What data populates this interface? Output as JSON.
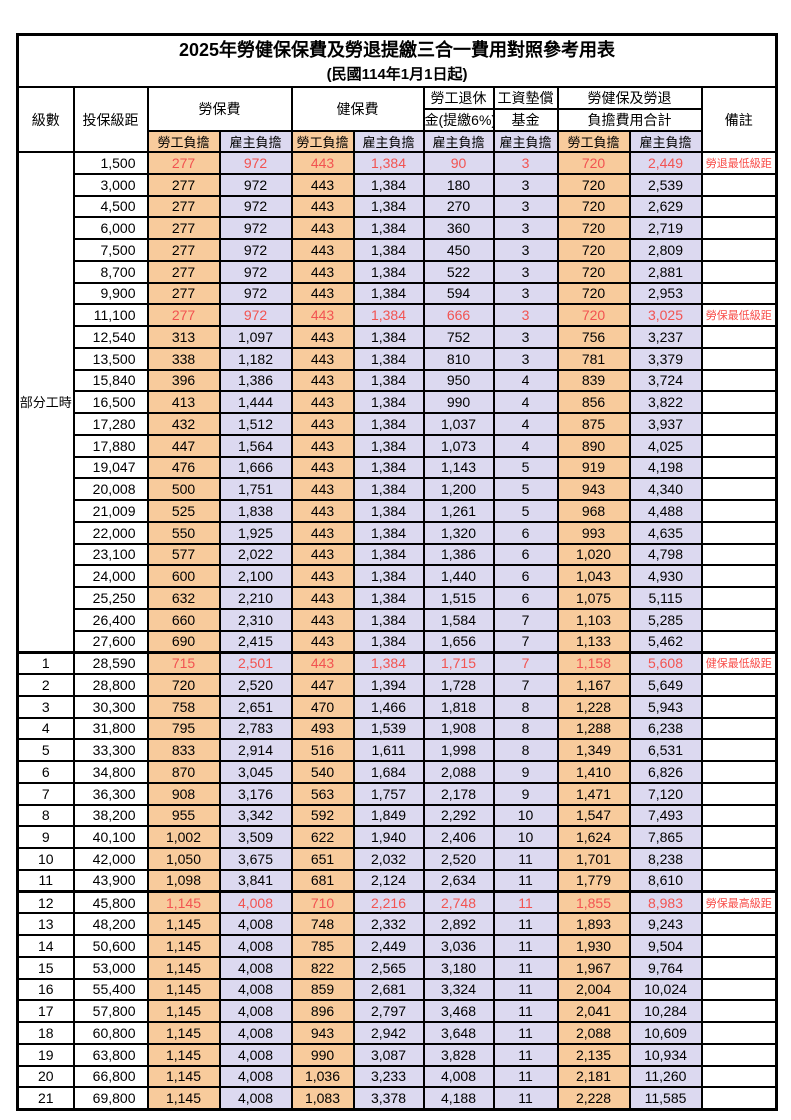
{
  "title": "2025年勞健保保費及勞退提繳三合一費用對照參考用表",
  "subtitle": "(民國114年1月1日起)",
  "colors": {
    "employee_col_bg": "#f8cb9c",
    "employer_col_bg": "#dcd9f0",
    "highlight_red": "#f25351",
    "remark_red": "#f84b47",
    "border": "#000000"
  },
  "header": {
    "level": "級數",
    "bracket": "投保級距",
    "labor_insurance": "勞保費",
    "health_insurance": "健保費",
    "pension_line1": "勞工退休",
    "pension_line2": "金(提繳6%)",
    "wage_fund_line1": "工資墊償",
    "wage_fund_line2": "基金",
    "total_line1": "勞健保及勞退",
    "total_line2": "負擔費用合計",
    "remark": "備註",
    "employee_share": "勞工負擔",
    "employer_share": "雇主負擔"
  },
  "part_time": {
    "label": "部分工時",
    "span": 23
  },
  "rows": [
    {
      "level": "",
      "bracket": "1,500",
      "li_emp": "277",
      "li_er": "972",
      "hi_emp": "443",
      "hi_er": "1,384",
      "pension": "90",
      "fund": "3",
      "tot_emp": "720",
      "tot_er": "2,449",
      "remark": "勞退最低級距",
      "hl": true,
      "thick_top": false
    },
    {
      "level": "",
      "bracket": "3,000",
      "li_emp": "277",
      "li_er": "972",
      "hi_emp": "443",
      "hi_er": "1,384",
      "pension": "180",
      "fund": "3",
      "tot_emp": "720",
      "tot_er": "2,539",
      "remark": "",
      "hl": false,
      "thick_top": false
    },
    {
      "level": "",
      "bracket": "4,500",
      "li_emp": "277",
      "li_er": "972",
      "hi_emp": "443",
      "hi_er": "1,384",
      "pension": "270",
      "fund": "3",
      "tot_emp": "720",
      "tot_er": "2,629",
      "remark": "",
      "hl": false,
      "thick_top": false
    },
    {
      "level": "",
      "bracket": "6,000",
      "li_emp": "277",
      "li_er": "972",
      "hi_emp": "443",
      "hi_er": "1,384",
      "pension": "360",
      "fund": "3",
      "tot_emp": "720",
      "tot_er": "2,719",
      "remark": "",
      "hl": false,
      "thick_top": false
    },
    {
      "level": "",
      "bracket": "7,500",
      "li_emp": "277",
      "li_er": "972",
      "hi_emp": "443",
      "hi_er": "1,384",
      "pension": "450",
      "fund": "3",
      "tot_emp": "720",
      "tot_er": "2,809",
      "remark": "",
      "hl": false,
      "thick_top": false
    },
    {
      "level": "",
      "bracket": "8,700",
      "li_emp": "277",
      "li_er": "972",
      "hi_emp": "443",
      "hi_er": "1,384",
      "pension": "522",
      "fund": "3",
      "tot_emp": "720",
      "tot_er": "2,881",
      "remark": "",
      "hl": false,
      "thick_top": false
    },
    {
      "level": "",
      "bracket": "9,900",
      "li_emp": "277",
      "li_er": "972",
      "hi_emp": "443",
      "hi_er": "1,384",
      "pension": "594",
      "fund": "3",
      "tot_emp": "720",
      "tot_er": "2,953",
      "remark": "",
      "hl": false,
      "thick_top": false
    },
    {
      "level": "",
      "bracket": "11,100",
      "li_emp": "277",
      "li_er": "972",
      "hi_emp": "443",
      "hi_er": "1,384",
      "pension": "666",
      "fund": "3",
      "tot_emp": "720",
      "tot_er": "3,025",
      "remark": "勞保最低級距",
      "hl": true,
      "thick_top": false
    },
    {
      "level": "",
      "bracket": "12,540",
      "li_emp": "313",
      "li_er": "1,097",
      "hi_emp": "443",
      "hi_er": "1,384",
      "pension": "752",
      "fund": "3",
      "tot_emp": "756",
      "tot_er": "3,237",
      "remark": "",
      "hl": false,
      "thick_top": false
    },
    {
      "level": "",
      "bracket": "13,500",
      "li_emp": "338",
      "li_er": "1,182",
      "hi_emp": "443",
      "hi_er": "1,384",
      "pension": "810",
      "fund": "3",
      "tot_emp": "781",
      "tot_er": "3,379",
      "remark": "",
      "hl": false,
      "thick_top": false
    },
    {
      "level": "",
      "bracket": "15,840",
      "li_emp": "396",
      "li_er": "1,386",
      "hi_emp": "443",
      "hi_er": "1,384",
      "pension": "950",
      "fund": "4",
      "tot_emp": "839",
      "tot_er": "3,724",
      "remark": "",
      "hl": false,
      "thick_top": false
    },
    {
      "level": "",
      "bracket": "16,500",
      "li_emp": "413",
      "li_er": "1,444",
      "hi_emp": "443",
      "hi_er": "1,384",
      "pension": "990",
      "fund": "4",
      "tot_emp": "856",
      "tot_er": "3,822",
      "remark": "",
      "hl": false,
      "thick_top": false
    },
    {
      "level": "",
      "bracket": "17,280",
      "li_emp": "432",
      "li_er": "1,512",
      "hi_emp": "443",
      "hi_er": "1,384",
      "pension": "1,037",
      "fund": "4",
      "tot_emp": "875",
      "tot_er": "3,937",
      "remark": "",
      "hl": false,
      "thick_top": false
    },
    {
      "level": "",
      "bracket": "17,880",
      "li_emp": "447",
      "li_er": "1,564",
      "hi_emp": "443",
      "hi_er": "1,384",
      "pension": "1,073",
      "fund": "4",
      "tot_emp": "890",
      "tot_er": "4,025",
      "remark": "",
      "hl": false,
      "thick_top": false
    },
    {
      "level": "",
      "bracket": "19,047",
      "li_emp": "476",
      "li_er": "1,666",
      "hi_emp": "443",
      "hi_er": "1,384",
      "pension": "1,143",
      "fund": "5",
      "tot_emp": "919",
      "tot_er": "4,198",
      "remark": "",
      "hl": false,
      "thick_top": false
    },
    {
      "level": "",
      "bracket": "20,008",
      "li_emp": "500",
      "li_er": "1,751",
      "hi_emp": "443",
      "hi_er": "1,384",
      "pension": "1,200",
      "fund": "5",
      "tot_emp": "943",
      "tot_er": "4,340",
      "remark": "",
      "hl": false,
      "thick_top": false
    },
    {
      "level": "",
      "bracket": "21,009",
      "li_emp": "525",
      "li_er": "1,838",
      "hi_emp": "443",
      "hi_er": "1,384",
      "pension": "1,261",
      "fund": "5",
      "tot_emp": "968",
      "tot_er": "4,488",
      "remark": "",
      "hl": false,
      "thick_top": false
    },
    {
      "level": "",
      "bracket": "22,000",
      "li_emp": "550",
      "li_er": "1,925",
      "hi_emp": "443",
      "hi_er": "1,384",
      "pension": "1,320",
      "fund": "6",
      "tot_emp": "993",
      "tot_er": "4,635",
      "remark": "",
      "hl": false,
      "thick_top": false
    },
    {
      "level": "",
      "bracket": "23,100",
      "li_emp": "577",
      "li_er": "2,022",
      "hi_emp": "443",
      "hi_er": "1,384",
      "pension": "1,386",
      "fund": "6",
      "tot_emp": "1,020",
      "tot_er": "4,798",
      "remark": "",
      "hl": false,
      "thick_top": false
    },
    {
      "level": "",
      "bracket": "24,000",
      "li_emp": "600",
      "li_er": "2,100",
      "hi_emp": "443",
      "hi_er": "1,384",
      "pension": "1,440",
      "fund": "6",
      "tot_emp": "1,043",
      "tot_er": "4,930",
      "remark": "",
      "hl": false,
      "thick_top": false
    },
    {
      "level": "",
      "bracket": "25,250",
      "li_emp": "632",
      "li_er": "2,210",
      "hi_emp": "443",
      "hi_er": "1,384",
      "pension": "1,515",
      "fund": "6",
      "tot_emp": "1,075",
      "tot_er": "5,115",
      "remark": "",
      "hl": false,
      "thick_top": false
    },
    {
      "level": "",
      "bracket": "26,400",
      "li_emp": "660",
      "li_er": "2,310",
      "hi_emp": "443",
      "hi_er": "1,384",
      "pension": "1,584",
      "fund": "7",
      "tot_emp": "1,103",
      "tot_er": "5,285",
      "remark": "",
      "hl": false,
      "thick_top": false
    },
    {
      "level": "",
      "bracket": "27,600",
      "li_emp": "690",
      "li_er": "2,415",
      "hi_emp": "443",
      "hi_er": "1,384",
      "pension": "1,656",
      "fund": "7",
      "tot_emp": "1,133",
      "tot_er": "5,462",
      "remark": "",
      "hl": false,
      "thick_top": false
    },
    {
      "level": "1",
      "bracket": "28,590",
      "li_emp": "715",
      "li_er": "2,501",
      "hi_emp": "443",
      "hi_er": "1,384",
      "pension": "1,715",
      "fund": "7",
      "tot_emp": "1,158",
      "tot_er": "5,608",
      "remark": "健保最低級距",
      "hl": true,
      "thick_top": true
    },
    {
      "level": "2",
      "bracket": "28,800",
      "li_emp": "720",
      "li_er": "2,520",
      "hi_emp": "447",
      "hi_er": "1,394",
      "pension": "1,728",
      "fund": "7",
      "tot_emp": "1,167",
      "tot_er": "5,649",
      "remark": "",
      "hl": false,
      "thick_top": false
    },
    {
      "level": "3",
      "bracket": "30,300",
      "li_emp": "758",
      "li_er": "2,651",
      "hi_emp": "470",
      "hi_er": "1,466",
      "pension": "1,818",
      "fund": "8",
      "tot_emp": "1,228",
      "tot_er": "5,943",
      "remark": "",
      "hl": false,
      "thick_top": false
    },
    {
      "level": "4",
      "bracket": "31,800",
      "li_emp": "795",
      "li_er": "2,783",
      "hi_emp": "493",
      "hi_er": "1,539",
      "pension": "1,908",
      "fund": "8",
      "tot_emp": "1,288",
      "tot_er": "6,238",
      "remark": "",
      "hl": false,
      "thick_top": false
    },
    {
      "level": "5",
      "bracket": "33,300",
      "li_emp": "833",
      "li_er": "2,914",
      "hi_emp": "516",
      "hi_er": "1,611",
      "pension": "1,998",
      "fund": "8",
      "tot_emp": "1,349",
      "tot_er": "6,531",
      "remark": "",
      "hl": false,
      "thick_top": false
    },
    {
      "level": "6",
      "bracket": "34,800",
      "li_emp": "870",
      "li_er": "3,045",
      "hi_emp": "540",
      "hi_er": "1,684",
      "pension": "2,088",
      "fund": "9",
      "tot_emp": "1,410",
      "tot_er": "6,826",
      "remark": "",
      "hl": false,
      "thick_top": false
    },
    {
      "level": "7",
      "bracket": "36,300",
      "li_emp": "908",
      "li_er": "3,176",
      "hi_emp": "563",
      "hi_er": "1,757",
      "pension": "2,178",
      "fund": "9",
      "tot_emp": "1,471",
      "tot_er": "7,120",
      "remark": "",
      "hl": false,
      "thick_top": false
    },
    {
      "level": "8",
      "bracket": "38,200",
      "li_emp": "955",
      "li_er": "3,342",
      "hi_emp": "592",
      "hi_er": "1,849",
      "pension": "2,292",
      "fund": "10",
      "tot_emp": "1,547",
      "tot_er": "7,493",
      "remark": "",
      "hl": false,
      "thick_top": false
    },
    {
      "level": "9",
      "bracket": "40,100",
      "li_emp": "1,002",
      "li_er": "3,509",
      "hi_emp": "622",
      "hi_er": "1,940",
      "pension": "2,406",
      "fund": "10",
      "tot_emp": "1,624",
      "tot_er": "7,865",
      "remark": "",
      "hl": false,
      "thick_top": false
    },
    {
      "level": "10",
      "bracket": "42,000",
      "li_emp": "1,050",
      "li_er": "3,675",
      "hi_emp": "651",
      "hi_er": "2,032",
      "pension": "2,520",
      "fund": "11",
      "tot_emp": "1,701",
      "tot_er": "8,238",
      "remark": "",
      "hl": false,
      "thick_top": false
    },
    {
      "level": "11",
      "bracket": "43,900",
      "li_emp": "1,098",
      "li_er": "3,841",
      "hi_emp": "681",
      "hi_er": "2,124",
      "pension": "2,634",
      "fund": "11",
      "tot_emp": "1,779",
      "tot_er": "8,610",
      "remark": "",
      "hl": false,
      "thick_top": false
    },
    {
      "level": "12",
      "bracket": "45,800",
      "li_emp": "1,145",
      "li_er": "4,008",
      "hi_emp": "710",
      "hi_er": "2,216",
      "pension": "2,748",
      "fund": "11",
      "tot_emp": "1,855",
      "tot_er": "8,983",
      "remark": "勞保最高級距",
      "hl": true,
      "thick_top": true
    },
    {
      "level": "13",
      "bracket": "48,200",
      "li_emp": "1,145",
      "li_er": "4,008",
      "hi_emp": "748",
      "hi_er": "2,332",
      "pension": "2,892",
      "fund": "11",
      "tot_emp": "1,893",
      "tot_er": "9,243",
      "remark": "",
      "hl": false,
      "thick_top": false
    },
    {
      "level": "14",
      "bracket": "50,600",
      "li_emp": "1,145",
      "li_er": "4,008",
      "hi_emp": "785",
      "hi_er": "2,449",
      "pension": "3,036",
      "fund": "11",
      "tot_emp": "1,930",
      "tot_er": "9,504",
      "remark": "",
      "hl": false,
      "thick_top": false
    },
    {
      "level": "15",
      "bracket": "53,000",
      "li_emp": "1,145",
      "li_er": "4,008",
      "hi_emp": "822",
      "hi_er": "2,565",
      "pension": "3,180",
      "fund": "11",
      "tot_emp": "1,967",
      "tot_er": "9,764",
      "remark": "",
      "hl": false,
      "thick_top": false
    },
    {
      "level": "16",
      "bracket": "55,400",
      "li_emp": "1,145",
      "li_er": "4,008",
      "hi_emp": "859",
      "hi_er": "2,681",
      "pension": "3,324",
      "fund": "11",
      "tot_emp": "2,004",
      "tot_er": "10,024",
      "remark": "",
      "hl": false,
      "thick_top": false
    },
    {
      "level": "17",
      "bracket": "57,800",
      "li_emp": "1,145",
      "li_er": "4,008",
      "hi_emp": "896",
      "hi_er": "2,797",
      "pension": "3,468",
      "fund": "11",
      "tot_emp": "2,041",
      "tot_er": "10,284",
      "remark": "",
      "hl": false,
      "thick_top": false
    },
    {
      "level": "18",
      "bracket": "60,800",
      "li_emp": "1,145",
      "li_er": "4,008",
      "hi_emp": "943",
      "hi_er": "2,942",
      "pension": "3,648",
      "fund": "11",
      "tot_emp": "2,088",
      "tot_er": "10,609",
      "remark": "",
      "hl": false,
      "thick_top": false
    },
    {
      "level": "19",
      "bracket": "63,800",
      "li_emp": "1,145",
      "li_er": "4,008",
      "hi_emp": "990",
      "hi_er": "3,087",
      "pension": "3,828",
      "fund": "11",
      "tot_emp": "2,135",
      "tot_er": "10,934",
      "remark": "",
      "hl": false,
      "thick_top": false
    },
    {
      "level": "20",
      "bracket": "66,800",
      "li_emp": "1,145",
      "li_er": "4,008",
      "hi_emp": "1,036",
      "hi_er": "3,233",
      "pension": "4,008",
      "fund": "11",
      "tot_emp": "2,181",
      "tot_er": "11,260",
      "remark": "",
      "hl": false,
      "thick_top": false
    },
    {
      "level": "21",
      "bracket": "69,800",
      "li_emp": "1,145",
      "li_er": "4,008",
      "hi_emp": "1,083",
      "hi_er": "3,378",
      "pension": "4,188",
      "fund": "11",
      "tot_emp": "2,228",
      "tot_er": "11,585",
      "remark": "",
      "hl": false,
      "thick_top": false
    }
  ]
}
